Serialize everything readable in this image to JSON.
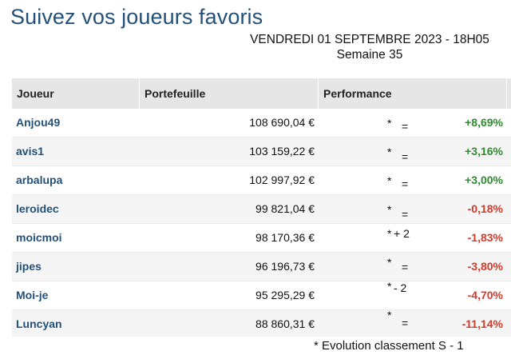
{
  "page": {
    "title": "Suivez vos joueurs favoris"
  },
  "date": {
    "line1": "VENDREDI 01 SEPTEMBRE 2023 - 18H05",
    "line2": "Semaine 35"
  },
  "table": {
    "headers": [
      "Joueur",
      "Portefeuille",
      "Performance",
      ""
    ],
    "rows": [
      {
        "player": "Anjou49",
        "portfolio": "108 690,04 €",
        "star": "*",
        "evolution": "=",
        "performance": "+8,69%",
        "trend": "up"
      },
      {
        "player": "avis1",
        "portfolio": "103 159,22 €",
        "star": "*",
        "evolution": "=",
        "performance": "+3,16%",
        "trend": "up"
      },
      {
        "player": "arbalupa",
        "portfolio": "102 997,92 €",
        "star": "*",
        "evolution": "=",
        "performance": "+3,00%",
        "trend": "up"
      },
      {
        "player": "leroidec",
        "portfolio": "99 821,04 €",
        "star": "*",
        "evolution": "=",
        "performance": "-0,18%",
        "trend": "down"
      },
      {
        "player": "moicmoi",
        "portfolio": "98 170,36 €",
        "star": "*",
        "evolution": "+ 2",
        "performance": "-1,83%",
        "trend": "down"
      },
      {
        "player": "jipes",
        "portfolio": "96 196,73 €",
        "star": "*",
        "evolution": "=",
        "performance": "-3,80%",
        "trend": "down"
      },
      {
        "player": "Moi-je",
        "portfolio": "95 295,29 €",
        "star": "*",
        "evolution": "- 2",
        "performance": "-4,70%",
        "trend": "down"
      },
      {
        "player": "Luncyan",
        "portfolio": "88 860,31 €",
        "star": "*",
        "evolution": "=",
        "performance": "-11,14%",
        "trend": "down"
      }
    ]
  },
  "footnote": "* Evolution classement S - 1",
  "colors": {
    "title": "#23517a",
    "positive": "#2e8b2e",
    "negative": "#d43a2a",
    "header_bg": "#e6e6e6"
  }
}
